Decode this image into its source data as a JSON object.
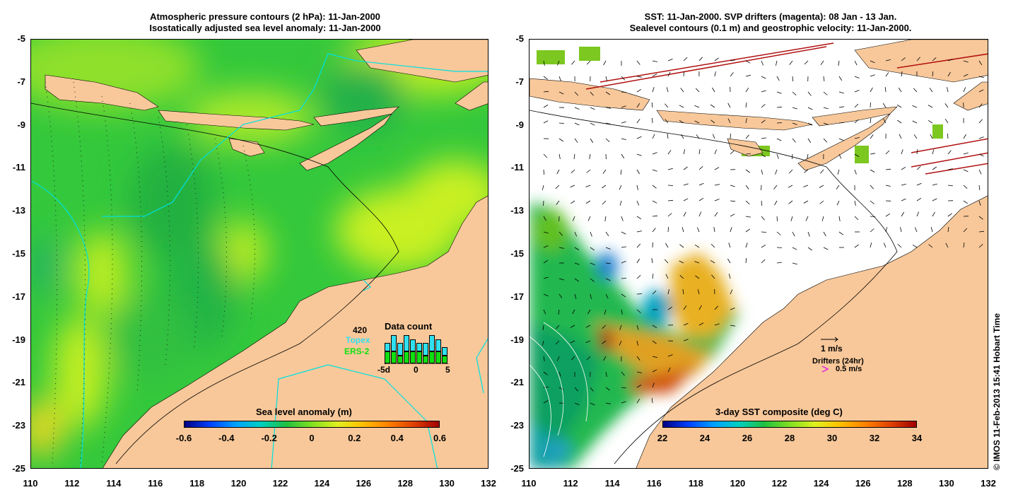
{
  "left_panel": {
    "title_line1": "Atmospheric pressure contours (2 hPa): 11-Jan-2000",
    "title_line2": "Isostatically adjusted sea level anomaly: 11-Jan-2000",
    "colorbar": {
      "title": "Sea level anomaly (m)",
      "labels": [
        "-0.6",
        "-0.4",
        "-0.2",
        "0",
        "0.2",
        "0.4",
        "0.6"
      ]
    },
    "data_count": {
      "title": "Data count",
      "total": "420",
      "series1": "Topex",
      "series2": "ERS-2",
      "x_labels": [
        "-5d",
        "0",
        "5"
      ],
      "topex_values": [
        2,
        4,
        3,
        4,
        3,
        2,
        3,
        4,
        3,
        2
      ],
      "ers_values": [
        3,
        3,
        2,
        3,
        3,
        3,
        2,
        3,
        3,
        2
      ]
    }
  },
  "right_panel": {
    "title_line1": "SST: 11-Jan-2000. SVP drifters (magenta): 08 Jan - 13 Jan.",
    "title_line2": "Sealevel contours (0.1 m) and geostrophic velocity: 11-Jan-2000.",
    "colorbar": {
      "title": "3-day SST composite (deg C)",
      "labels": [
        "22",
        "24",
        "26",
        "28",
        "30",
        "32",
        "34"
      ]
    },
    "velocity_scale": "1 m/s",
    "drifters_label": "Drifters (24hr)",
    "drifters_scale": "0.5 m/s"
  },
  "axes": {
    "y_labels": [
      "-5",
      "-7",
      "-9",
      "-11",
      "-13",
      "-15",
      "-17",
      "-19",
      "-21",
      "-23",
      "-25"
    ],
    "x_labels": [
      "110",
      "112",
      "114",
      "116",
      "118",
      "120",
      "122",
      "124",
      "126",
      "128",
      "130",
      "132"
    ]
  },
  "credit": "© IMOS 11-Feb-2013 15:41 Hobart Time",
  "colors": {
    "land": "#f8c89a",
    "ocean_mid": "#22c84a",
    "ocean_high": "#c8f020",
    "topex": "#30e0f0",
    "ers": "#10e010"
  }
}
